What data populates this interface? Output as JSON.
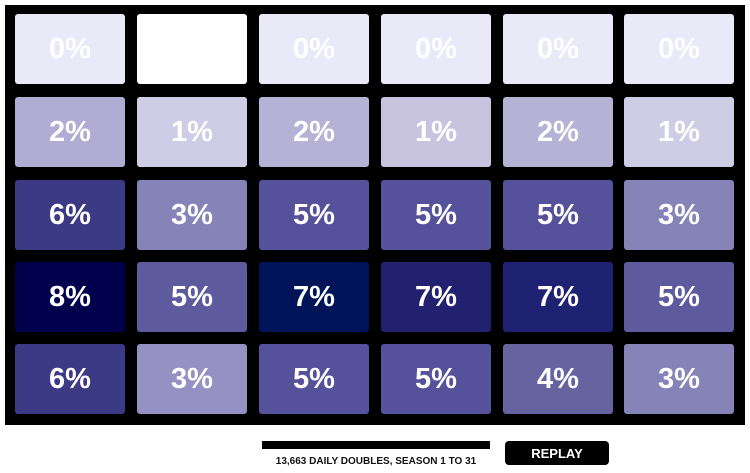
{
  "chart_data": {
    "type": "heatmap",
    "rows": [
      [
        "0%",
        "",
        "0%",
        "0%",
        "0%",
        "0%"
      ],
      [
        "2%",
        "1%",
        "2%",
        "1%",
        "2%",
        "1%"
      ],
      [
        "6%",
        "3%",
        "5%",
        "5%",
        "5%",
        "3%"
      ],
      [
        "8%",
        "5%",
        "7%",
        "7%",
        "7%",
        "5%"
      ],
      [
        "6%",
        "3%",
        "5%",
        "5%",
        "4%",
        "3%"
      ]
    ],
    "colors": [
      [
        "#e9e9f8",
        "#ffffff",
        "#e9e9f8",
        "#e9e9f8",
        "#e9e9f8",
        "#e9e9f8"
      ],
      [
        "#b1acd3",
        "#cfcde5",
        "#b6b2d6",
        "#c8c4e0",
        "#b6b2d6",
        "#cfcde5"
      ],
      [
        "#3c3a84",
        "#8683b8",
        "#55519a",
        "#55519a",
        "#55519a",
        "#8683b8"
      ],
      [
        "#00004d",
        "#5e5a9e",
        "#00145a",
        "#212170",
        "#1f2173",
        "#5e5a9e"
      ],
      [
        "#3c3a84",
        "#9592c3",
        "#55519a",
        "#55519a",
        "#66639f",
        "#8683b8"
      ]
    ]
  },
  "footer": {
    "caption": "13,663 DAILY DOUBLES, SEASON 1 TO 31",
    "replay_label": "REPLAY",
    "progress": 1.0
  }
}
